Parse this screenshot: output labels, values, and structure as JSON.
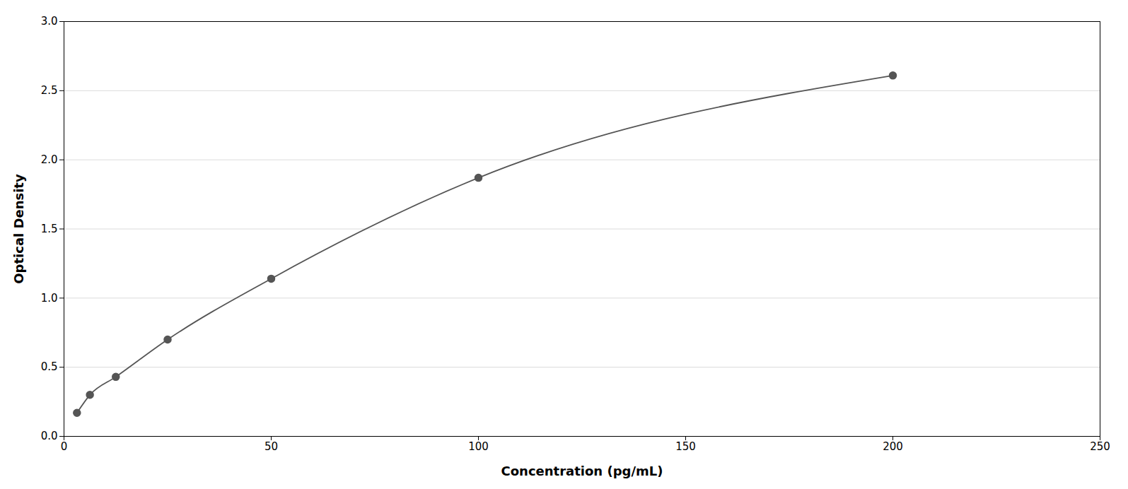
{
  "chart_data": {
    "type": "line",
    "x": [
      3.125,
      6.25,
      12.5,
      25,
      50,
      100,
      200
    ],
    "values": [
      0.17,
      0.3,
      0.43,
      0.7,
      1.14,
      1.87,
      2.61
    ],
    "xlabel": "Concentration (pg/mL)",
    "ylabel": "Optical Density",
    "xlim": [
      0,
      250
    ],
    "ylim": [
      0,
      3
    ],
    "xticks": [
      0,
      50,
      100,
      150,
      200,
      250
    ],
    "yticks": [
      {
        "value": 0,
        "label": "0.0"
      },
      0.5,
      {
        "value": 1.0,
        "label": "1.0"
      },
      1.5,
      {
        "value": 2.0,
        "label": "2.0"
      },
      2.5,
      {
        "value": 3.0,
        "label": "3.0"
      }
    ],
    "color": "#555555",
    "marker": "circle",
    "grid": true
  }
}
